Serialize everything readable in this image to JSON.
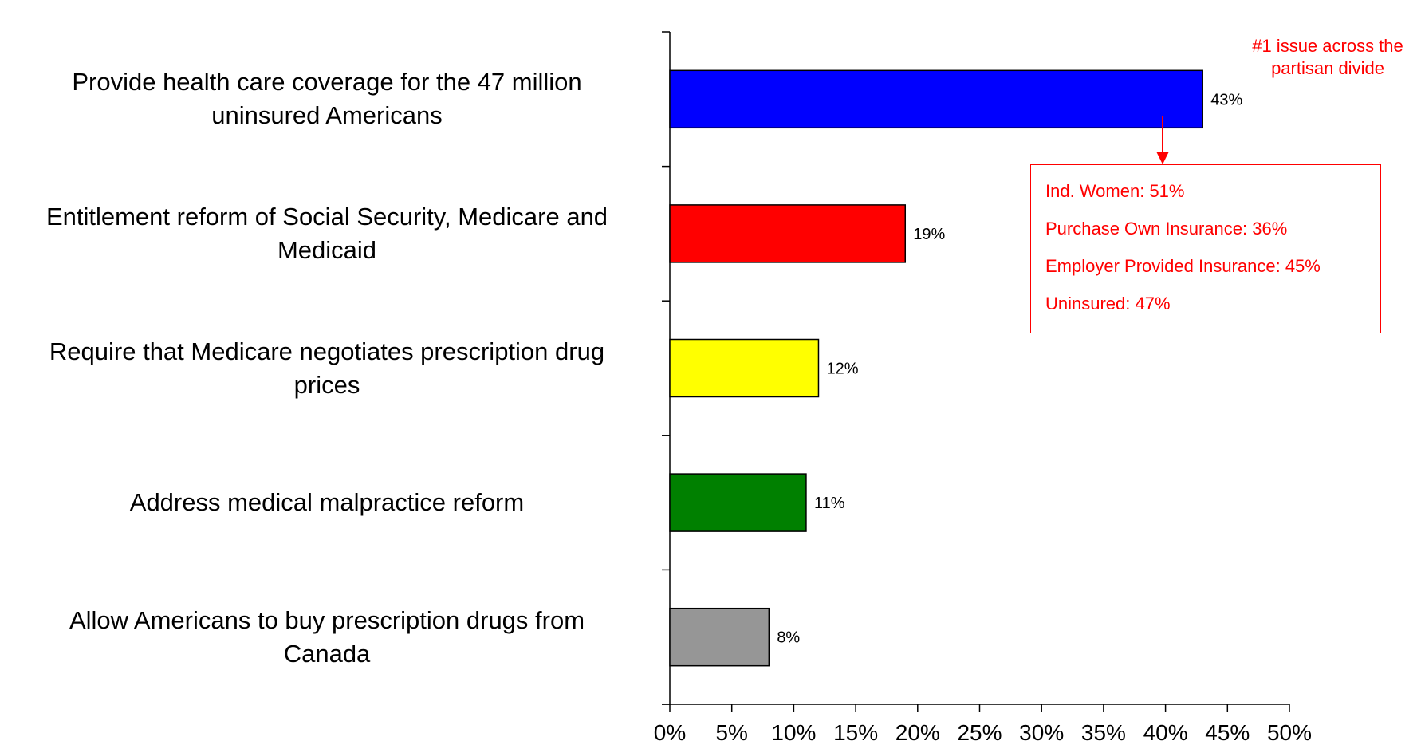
{
  "chart_data": {
    "type": "bar",
    "orientation": "horizontal",
    "categories": [
      "Provide health care coverage for the 47 million uninsured Americans",
      "Entitlement reform of Social Security, Medicare and Medicaid",
      "Require that Medicare negotiates prescription drug prices",
      "Address medical malpractice reform",
      "Allow Americans to buy prescription drugs from Canada"
    ],
    "values": [
      43,
      19,
      12,
      11,
      8
    ],
    "data_labels": [
      "43%",
      "19%",
      "12%",
      "11%",
      "8%"
    ],
    "bar_colors": [
      "#0000ff",
      "#ff0000",
      "#ffff00",
      "#008000",
      "#969696"
    ],
    "xlim": [
      0,
      50
    ],
    "x_ticks": [
      "0%",
      "5%",
      "10%",
      "15%",
      "20%",
      "25%",
      "30%",
      "35%",
      "40%",
      "45%",
      "50%"
    ],
    "grid": false,
    "legend": "none"
  },
  "annotation": {
    "headline": "#1 issue across the partisan divide",
    "color": "#ff0000",
    "items": [
      "Ind. Women: 51%",
      "Purchase Own Insurance: 36%",
      "Employer Provided Insurance: 45%",
      "Uninsured: 47%"
    ]
  }
}
